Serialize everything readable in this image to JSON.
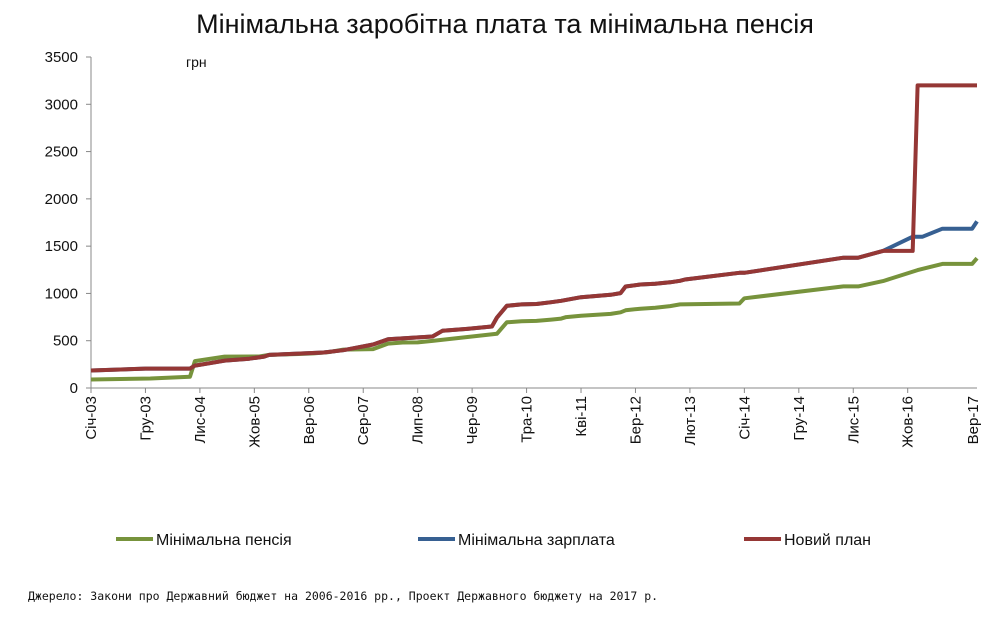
{
  "chart_data": {
    "type": "line",
    "title": "Мінімальна заробітна плата та мінімальна пенсія",
    "ylabel": "грн",
    "xlabel": "",
    "ylim": [
      0,
      3500
    ],
    "yticks": [
      0,
      500,
      1000,
      1500,
      2000,
      2500,
      3000,
      3500
    ],
    "x_tick_labels": [
      "Січ-03",
      "Гру-03",
      "Лис-04",
      "Жов-05",
      "Вер-06",
      "Сер-07",
      "Лип-08",
      "Чер-09",
      "Тра-10",
      "Кві-11",
      "Бер-12",
      "Лют-13",
      "Січ-14",
      "Гру-14",
      "Лис-15",
      "Жов-16",
      "Вер-17"
    ],
    "x_start": "2003-01",
    "x_end": "2017-12",
    "grid": false,
    "legend_position": "bottom",
    "source_note": "Джерело: Закони про Державний бюджет  на 2006-2016 рр., Проект Державного бюджету на 2017 р.",
    "series": [
      {
        "name": "Мінімальна пенсія",
        "color": "#77933c",
        "points": [
          [
            "2003-01",
            90
          ],
          [
            "2004-01",
            100
          ],
          [
            "2004-09",
            120
          ],
          [
            "2004-10",
            284
          ],
          [
            "2005-04",
            332
          ],
          [
            "2005-11",
            333
          ],
          [
            "2006-01",
            350
          ],
          [
            "2006-07",
            359
          ],
          [
            "2006-10",
            366
          ],
          [
            "2007-01",
            380
          ],
          [
            "2007-04",
            406
          ],
          [
            "2007-10",
            411
          ],
          [
            "2008-01",
            470
          ],
          [
            "2008-04",
            481
          ],
          [
            "2008-07",
            482
          ],
          [
            "2008-10",
            498
          ],
          [
            "2009-11",
            573
          ],
          [
            "2010-01",
            695
          ],
          [
            "2010-04",
            706
          ],
          [
            "2010-07",
            709
          ],
          [
            "2010-10",
            723
          ],
          [
            "2010-12",
            734
          ],
          [
            "2011-01",
            750
          ],
          [
            "2011-04",
            764
          ],
          [
            "2011-10",
            784
          ],
          [
            "2011-12",
            800
          ],
          [
            "2012-01",
            822
          ],
          [
            "2012-04",
            838
          ],
          [
            "2012-07",
            849
          ],
          [
            "2012-10",
            866
          ],
          [
            "2012-12",
            884
          ],
          [
            "2013-12",
            894
          ],
          [
            "2014-01",
            949
          ],
          [
            "2015-09",
            1074
          ],
          [
            "2015-12",
            1074
          ],
          [
            "2016-05",
            1130
          ],
          [
            "2016-12",
            1247
          ],
          [
            "2017-05",
            1312
          ],
          [
            "2017-11",
            1312
          ],
          [
            "2017-12",
            1373
          ]
        ]
      },
      {
        "name": "Мінімальна зарплата",
        "color": "#376092",
        "points": [
          [
            "2003-01",
            185
          ],
          [
            "2003-12",
            205
          ],
          [
            "2004-09",
            205
          ],
          [
            "2004-10",
            237
          ],
          [
            "2005-01",
            262
          ],
          [
            "2005-04",
            290
          ],
          [
            "2005-09",
            310
          ],
          [
            "2005-12",
            332
          ],
          [
            "2006-01",
            350
          ],
          [
            "2006-12",
            375
          ],
          [
            "2007-04",
            400
          ],
          [
            "2007-10",
            460
          ],
          [
            "2008-01",
            515
          ],
          [
            "2008-10",
            545
          ],
          [
            "2008-12",
            605
          ],
          [
            "2009-05",
            625
          ],
          [
            "2009-10",
            650
          ],
          [
            "2009-11",
            744
          ],
          [
            "2010-01",
            869
          ],
          [
            "2010-04",
            884
          ],
          [
            "2010-07",
            888
          ],
          [
            "2010-10",
            907
          ],
          [
            "2010-12",
            922
          ],
          [
            "2011-04",
            960
          ],
          [
            "2011-10",
            985
          ],
          [
            "2011-12",
            1004
          ],
          [
            "2012-01",
            1073
          ],
          [
            "2012-04",
            1094
          ],
          [
            "2012-07",
            1102
          ],
          [
            "2012-10",
            1118
          ],
          [
            "2012-12",
            1134
          ],
          [
            "2013-01",
            1147
          ],
          [
            "2013-12",
            1218
          ],
          [
            "2014-01",
            1218
          ],
          [
            "2015-09",
            1378
          ],
          [
            "2015-12",
            1378
          ],
          [
            "2016-05",
            1450
          ],
          [
            "2016-11",
            1600
          ],
          [
            "2017-01",
            1600
          ],
          [
            "2017-05",
            1684
          ],
          [
            "2017-11",
            1684
          ],
          [
            "2017-12",
            1762
          ]
        ]
      },
      {
        "name": "Новий план",
        "color": "#953735",
        "points": [
          [
            "2003-01",
            185
          ],
          [
            "2003-12",
            205
          ],
          [
            "2004-09",
            205
          ],
          [
            "2004-10",
            237
          ],
          [
            "2005-01",
            262
          ],
          [
            "2005-04",
            290
          ],
          [
            "2005-09",
            310
          ],
          [
            "2005-12",
            332
          ],
          [
            "2006-01",
            350
          ],
          [
            "2006-12",
            375
          ],
          [
            "2007-04",
            400
          ],
          [
            "2007-10",
            460
          ],
          [
            "2008-01",
            515
          ],
          [
            "2008-10",
            545
          ],
          [
            "2008-12",
            605
          ],
          [
            "2009-05",
            625
          ],
          [
            "2009-10",
            650
          ],
          [
            "2009-11",
            744
          ],
          [
            "2010-01",
            869
          ],
          [
            "2010-04",
            884
          ],
          [
            "2010-07",
            888
          ],
          [
            "2010-10",
            907
          ],
          [
            "2010-12",
            922
          ],
          [
            "2011-04",
            960
          ],
          [
            "2011-10",
            985
          ],
          [
            "2011-12",
            1004
          ],
          [
            "2012-01",
            1073
          ],
          [
            "2012-04",
            1094
          ],
          [
            "2012-07",
            1102
          ],
          [
            "2012-10",
            1118
          ],
          [
            "2012-12",
            1134
          ],
          [
            "2013-01",
            1147
          ],
          [
            "2013-12",
            1218
          ],
          [
            "2014-01",
            1218
          ],
          [
            "2015-09",
            1378
          ],
          [
            "2015-12",
            1378
          ],
          [
            "2016-05",
            1450
          ],
          [
            "2016-11",
            1450
          ],
          [
            "2016-12",
            3200
          ],
          [
            "2017-12",
            3200
          ]
        ]
      }
    ]
  }
}
